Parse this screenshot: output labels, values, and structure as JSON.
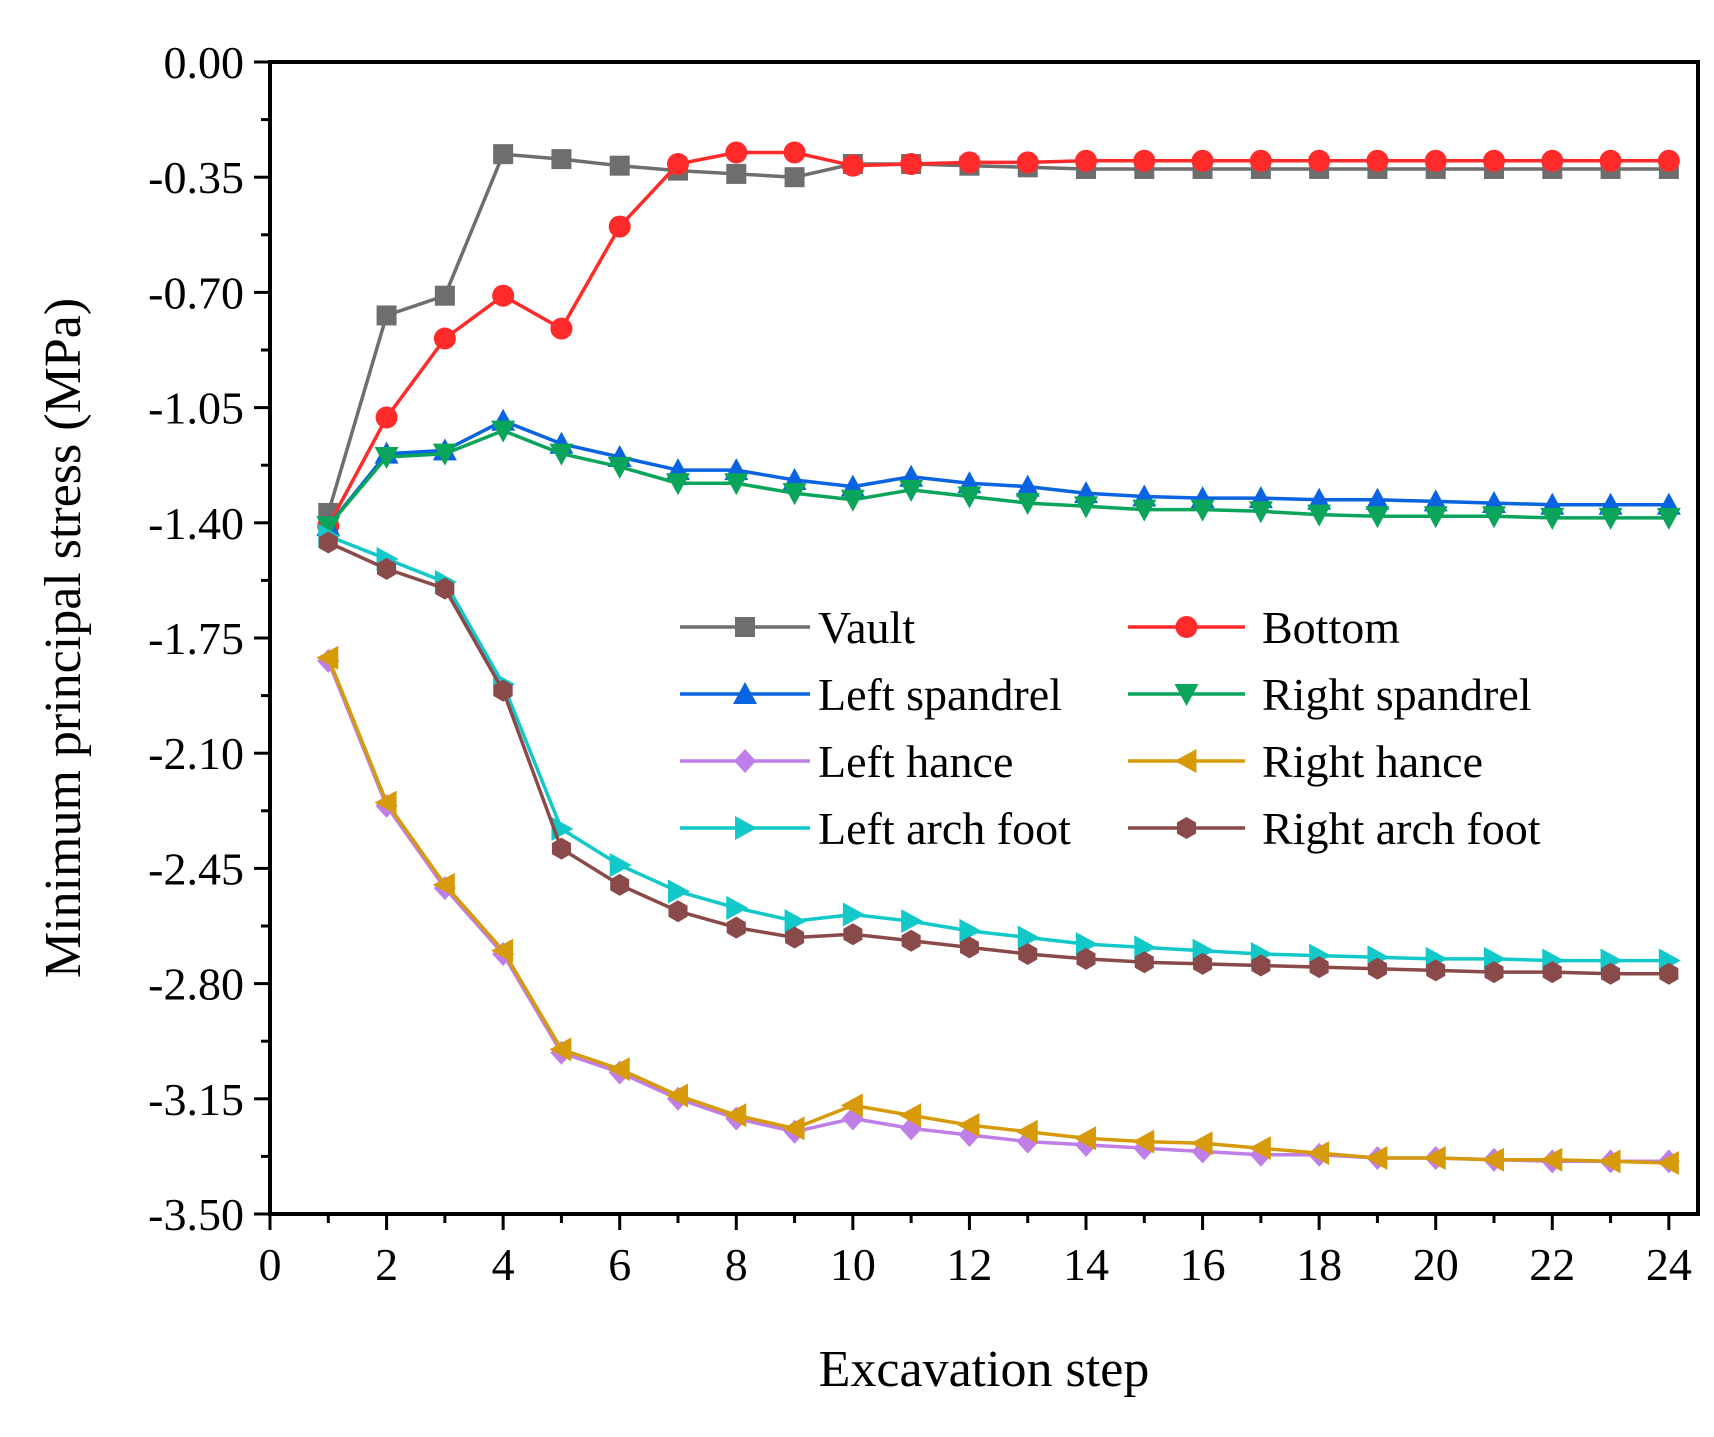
{
  "chart_data": {
    "type": "line",
    "title": "",
    "xlabel": "Excavation step",
    "ylabel": "Minimum principal stress (MPa)",
    "xlim": [
      0,
      24.5
    ],
    "ylim": [
      -3.5,
      0
    ],
    "xticks": [
      0,
      2,
      4,
      6,
      8,
      10,
      12,
      14,
      16,
      18,
      20,
      22,
      24
    ],
    "yticks": [
      0,
      -0.35,
      -0.7,
      -1.05,
      -1.4,
      -1.75,
      -2.1,
      -2.45,
      -2.8,
      -3.15,
      -3.5
    ],
    "xtick_labels": [
      "0",
      "2",
      "4",
      "6",
      "8",
      "10",
      "12",
      "14",
      "16",
      "18",
      "20",
      "22",
      "24"
    ],
    "ytick_labels": [
      "0.00",
      "-0.35",
      "-0.70",
      "-1.05",
      "-1.40",
      "-1.75",
      "-2.10",
      "-2.45",
      "-2.80",
      "-3.15",
      "-3.50"
    ],
    "grid": false,
    "legend_position": "center-right",
    "x": [
      1,
      2,
      3,
      4,
      5,
      6,
      7,
      8,
      9,
      10,
      11,
      12,
      13,
      14,
      15,
      16,
      17,
      18,
      19,
      20,
      21,
      22,
      23,
      24
    ],
    "series": [
      {
        "name": "Vault",
        "color": "#6e6e6e",
        "marker": "square",
        "values": [
          -1.37,
          -0.77,
          -0.71,
          -0.28,
          -0.295,
          -0.315,
          -0.33,
          -0.34,
          -0.35,
          -0.31,
          -0.31,
          -0.315,
          -0.32,
          -0.325,
          -0.325,
          -0.325,
          -0.325,
          -0.325,
          -0.325,
          -0.325,
          -0.325,
          -0.325,
          -0.325,
          -0.325
        ]
      },
      {
        "name": "Bottom",
        "color": "#ff2a2a",
        "marker": "circle",
        "values": [
          -1.41,
          -1.08,
          -0.84,
          -0.71,
          -0.81,
          -0.5,
          -0.31,
          -0.275,
          -0.275,
          -0.315,
          -0.31,
          -0.305,
          -0.305,
          -0.3,
          -0.3,
          -0.3,
          -0.3,
          -0.3,
          -0.3,
          -0.3,
          -0.3,
          -0.3,
          -0.3,
          -0.3
        ]
      },
      {
        "name": "Left spandrel",
        "color": "#0a63e0",
        "marker": "triangle-up",
        "values": [
          -1.41,
          -1.19,
          -1.18,
          -1.09,
          -1.16,
          -1.2,
          -1.24,
          -1.24,
          -1.27,
          -1.29,
          -1.26,
          -1.28,
          -1.29,
          -1.31,
          -1.32,
          -1.325,
          -1.325,
          -1.33,
          -1.33,
          -1.335,
          -1.34,
          -1.345,
          -1.345,
          -1.345
        ]
      },
      {
        "name": "Right spandrel",
        "color": "#0aa55a",
        "marker": "triangle-down",
        "values": [
          -1.41,
          -1.2,
          -1.19,
          -1.12,
          -1.19,
          -1.23,
          -1.28,
          -1.28,
          -1.31,
          -1.33,
          -1.3,
          -1.32,
          -1.34,
          -1.35,
          -1.36,
          -1.36,
          -1.365,
          -1.375,
          -1.38,
          -1.38,
          -1.38,
          -1.385,
          -1.385,
          -1.385
        ]
      },
      {
        "name": "Left hance",
        "color": "#c07ee8",
        "marker": "diamond",
        "values": [
          -1.82,
          -2.26,
          -2.51,
          -2.71,
          -3.01,
          -3.07,
          -3.15,
          -3.21,
          -3.25,
          -3.21,
          -3.24,
          -3.26,
          -3.28,
          -3.29,
          -3.3,
          -3.31,
          -3.32,
          -3.32,
          -3.33,
          -3.33,
          -3.335,
          -3.34,
          -3.34,
          -3.34
        ]
      },
      {
        "name": "Right hance",
        "color": "#d69a0a",
        "marker": "triangle-left",
        "values": [
          -1.81,
          -2.25,
          -2.5,
          -2.7,
          -3.0,
          -3.06,
          -3.14,
          -3.2,
          -3.24,
          -3.17,
          -3.2,
          -3.23,
          -3.25,
          -3.27,
          -3.28,
          -3.285,
          -3.3,
          -3.315,
          -3.33,
          -3.33,
          -3.335,
          -3.335,
          -3.34,
          -3.345
        ]
      },
      {
        "name": "Left arch foot",
        "color": "#12c8c8",
        "marker": "triangle-right",
        "values": [
          -1.44,
          -1.51,
          -1.58,
          -1.89,
          -2.33,
          -2.44,
          -2.52,
          -2.57,
          -2.61,
          -2.59,
          -2.61,
          -2.64,
          -2.66,
          -2.68,
          -2.69,
          -2.7,
          -2.71,
          -2.715,
          -2.72,
          -2.725,
          -2.725,
          -2.73,
          -2.73,
          -2.73
        ]
      },
      {
        "name": "Right arch foot",
        "color": "#8b4a4a",
        "marker": "hexagon",
        "values": [
          -1.46,
          -1.54,
          -1.6,
          -1.91,
          -2.39,
          -2.5,
          -2.58,
          -2.63,
          -2.66,
          -2.65,
          -2.67,
          -2.69,
          -2.71,
          -2.725,
          -2.735,
          -2.74,
          -2.745,
          -2.75,
          -2.755,
          -2.76,
          -2.765,
          -2.765,
          -2.77,
          -2.77
        ]
      }
    ]
  }
}
